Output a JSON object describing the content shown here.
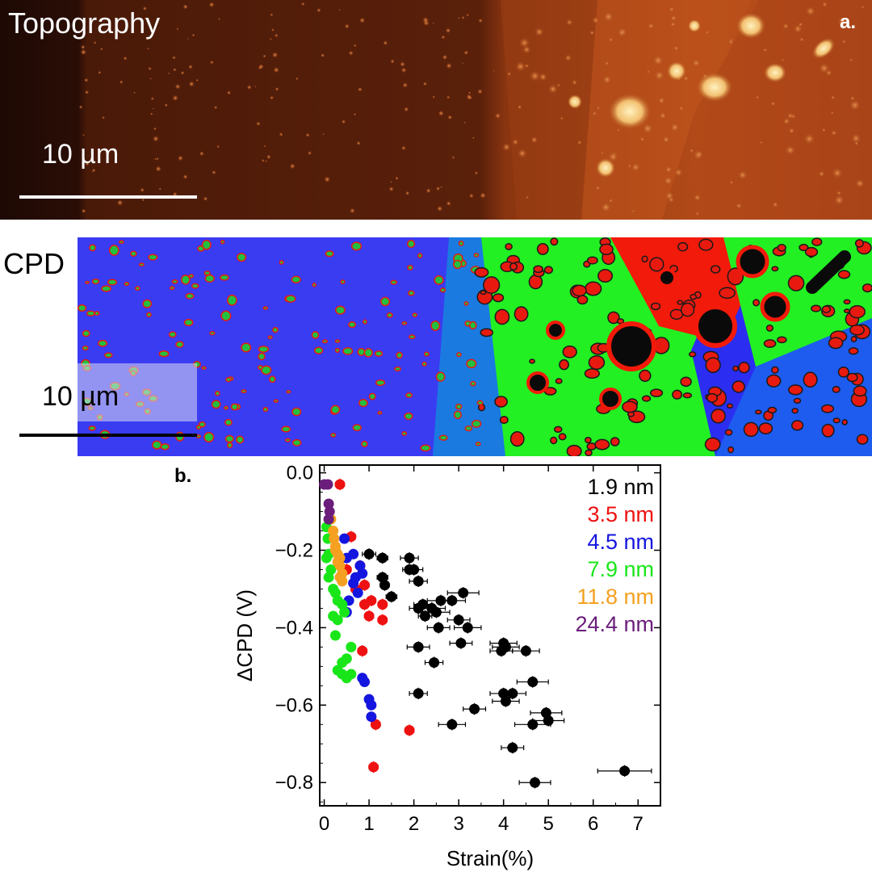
{
  "panel_a": {
    "label": "a.",
    "title": "Topography",
    "scalebar_label": "10 µm"
  },
  "panel_cpd": {
    "title": "CPD",
    "scalebar_label": "10 µm"
  },
  "panel_b": {
    "label": "b."
  },
  "colors": {
    "topo_dark": "#2a0e06",
    "topo_mid": "#9c3e15",
    "topo_bright": "#f8d58a",
    "cpd_blue": "#2b2ef0",
    "cpd_green": "#22f022",
    "cpd_red": "#f21a0a"
  },
  "chart_data": {
    "type": "scatter",
    "title": "",
    "xlabel": "Strain(%)",
    "ylabel": "ΔCPD (V)",
    "xlim": [
      -0.1,
      7.5
    ],
    "ylim": [
      -0.86,
      0.02
    ],
    "xticks": [
      0,
      1,
      2,
      3,
      4,
      5,
      6,
      7
    ],
    "yticks": [
      -0.8,
      -0.6,
      -0.4,
      -0.2,
      0.0
    ],
    "ytick_labels": [
      "−0.8",
      "−0.6",
      "−0.4",
      "−0.2",
      "0.0"
    ],
    "legend_position": "top-right",
    "grid": false,
    "series": [
      {
        "name": "1.9 nm",
        "color": "#000000",
        "points": [
          [
            1.0,
            -0.21
          ],
          [
            1.3,
            -0.22
          ],
          [
            1.3,
            -0.27
          ],
          [
            1.35,
            -0.29
          ],
          [
            1.5,
            -0.32
          ],
          [
            1.9,
            -0.22
          ],
          [
            2.0,
            -0.25
          ],
          [
            2.1,
            -0.28
          ],
          [
            1.9,
            -0.25
          ],
          [
            2.1,
            -0.35
          ],
          [
            2.2,
            -0.34
          ],
          [
            2.25,
            -0.37
          ],
          [
            2.4,
            -0.35
          ],
          [
            2.5,
            -0.36
          ],
          [
            2.6,
            -0.33
          ],
          [
            2.85,
            -0.33
          ],
          [
            3.1,
            -0.31
          ],
          [
            3.0,
            -0.38
          ],
          [
            3.2,
            -0.4
          ],
          [
            2.55,
            -0.4
          ],
          [
            2.1,
            -0.45
          ],
          [
            2.45,
            -0.49
          ],
          [
            3.05,
            -0.44
          ],
          [
            2.1,
            -0.57
          ],
          [
            4.0,
            -0.44
          ],
          [
            4.05,
            -0.45
          ],
          [
            3.95,
            -0.46
          ],
          [
            4.5,
            -0.46
          ],
          [
            4.65,
            -0.54
          ],
          [
            4.0,
            -0.57
          ],
          [
            4.2,
            -0.57
          ],
          [
            4.05,
            -0.59
          ],
          [
            3.35,
            -0.61
          ],
          [
            2.85,
            -0.65
          ],
          [
            4.95,
            -0.62
          ],
          [
            5.0,
            -0.64
          ],
          [
            4.65,
            -0.65
          ],
          [
            4.2,
            -0.71
          ],
          [
            4.7,
            -0.8
          ],
          [
            6.7,
            -0.77
          ]
        ],
        "xerr": [
          0.15,
          0.12,
          0.12,
          0.1,
          0.12,
          0.2,
          0.2,
          0.2,
          0.15,
          0.2,
          0.2,
          0.15,
          0.3,
          0.3,
          0.3,
          0.3,
          0.35,
          0.25,
          0.3,
          0.25,
          0.25,
          0.2,
          0.25,
          0.2,
          0.3,
          0.3,
          0.25,
          0.3,
          0.35,
          0.3,
          0.3,
          0.3,
          0.25,
          0.3,
          0.35,
          0.35,
          0.4,
          0.25,
          0.35,
          0.6
        ],
        "yerr": 0.015
      },
      {
        "name": "3.5 nm",
        "color": "#ee1111",
        "points": [
          [
            0.35,
            -0.03
          ],
          [
            0.6,
            -0.165
          ],
          [
            0.8,
            -0.24
          ],
          [
            0.9,
            -0.29
          ],
          [
            0.9,
            -0.34
          ],
          [
            1.0,
            -0.37
          ],
          [
            1.05,
            -0.33
          ],
          [
            1.3,
            -0.34
          ],
          [
            1.3,
            -0.38
          ],
          [
            0.85,
            -0.46
          ],
          [
            1.15,
            -0.65
          ],
          [
            1.9,
            -0.665
          ],
          [
            1.1,
            -0.76
          ],
          [
            0.5,
            -0.25
          ],
          [
            0.7,
            -0.3
          ]
        ],
        "xerr": 0.1,
        "yerr": 0.015
      },
      {
        "name": "4.5 nm",
        "color": "#1515e0",
        "points": [
          [
            0.45,
            -0.17
          ],
          [
            0.5,
            -0.22
          ],
          [
            0.65,
            -0.21
          ],
          [
            0.7,
            -0.27
          ],
          [
            0.8,
            -0.24
          ],
          [
            0.85,
            -0.26
          ],
          [
            0.65,
            -0.285
          ],
          [
            0.75,
            -0.31
          ],
          [
            0.55,
            -0.33
          ],
          [
            0.5,
            -0.36
          ],
          [
            0.85,
            -0.53
          ],
          [
            0.9,
            -0.54
          ],
          [
            1.0,
            -0.585
          ],
          [
            1.05,
            -0.6
          ],
          [
            1.05,
            -0.63
          ]
        ],
        "xerr": 0.08,
        "yerr": 0.012
      },
      {
        "name": "7.9 nm",
        "color": "#19e619",
        "points": [
          [
            0.05,
            -0.14
          ],
          [
            0.08,
            -0.17
          ],
          [
            0.1,
            -0.21
          ],
          [
            0.05,
            -0.22
          ],
          [
            0.15,
            -0.25
          ],
          [
            0.1,
            -0.27
          ],
          [
            0.2,
            -0.3
          ],
          [
            0.25,
            -0.31
          ],
          [
            0.3,
            -0.33
          ],
          [
            0.4,
            -0.34
          ],
          [
            0.45,
            -0.36
          ],
          [
            0.2,
            -0.37
          ],
          [
            0.3,
            -0.38
          ],
          [
            0.25,
            -0.42
          ],
          [
            0.6,
            -0.45
          ],
          [
            0.5,
            -0.48
          ],
          [
            0.4,
            -0.49
          ],
          [
            0.3,
            -0.51
          ],
          [
            0.4,
            -0.52
          ],
          [
            0.5,
            -0.53
          ],
          [
            0.6,
            -0.52
          ],
          [
            0.25,
            -0.2
          ]
        ],
        "xerr": 0.05,
        "yerr": 0.012
      },
      {
        "name": "11.8 nm",
        "color": "#f5a020",
        "points": [
          [
            0.15,
            -0.12
          ],
          [
            0.2,
            -0.15
          ],
          [
            0.22,
            -0.17
          ],
          [
            0.25,
            -0.19
          ],
          [
            0.3,
            -0.21
          ],
          [
            0.35,
            -0.22
          ],
          [
            0.3,
            -0.23
          ],
          [
            0.35,
            -0.24
          ],
          [
            0.4,
            -0.26
          ],
          [
            0.35,
            -0.27
          ],
          [
            0.4,
            -0.28
          ],
          [
            0.25,
            -0.2
          ]
        ],
        "xerr": 0.04,
        "yerr": 0.01
      },
      {
        "name": "24.4 nm",
        "color": "#6a1d7a",
        "points": [
          [
            0.0,
            -0.03
          ],
          [
            0.08,
            -0.03
          ],
          [
            0.1,
            -0.08
          ],
          [
            0.12,
            -0.1
          ],
          [
            0.1,
            -0.12
          ]
        ],
        "xerr": 0.03,
        "yerr": 0.01
      }
    ]
  }
}
